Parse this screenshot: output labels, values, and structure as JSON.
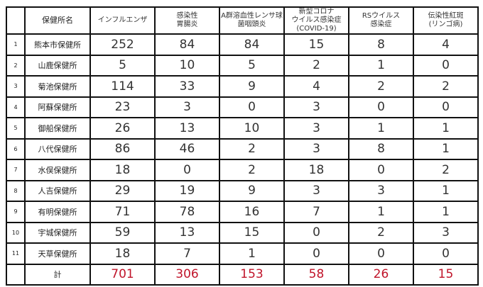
{
  "headers": {
    "no": "",
    "name": "保健所名",
    "cols": [
      [
        "インフルエンザ"
      ],
      [
        "感染性",
        "胃腸炎"
      ],
      [
        "A群溶血性レンサ球",
        "菌咽頭炎"
      ],
      [
        "新型コロナ",
        "ウイルス感染症",
        "(COVID-19)"
      ],
      [
        "RSウイルス",
        "感染症"
      ],
      [
        "伝染性紅斑",
        "(リンゴ病)"
      ]
    ]
  },
  "rows": [
    {
      "no": "1",
      "name": "熊本市保健所",
      "values": [
        "252",
        "84",
        "84",
        "15",
        "8",
        "4"
      ]
    },
    {
      "no": "2",
      "name": "山鹿保健所",
      "values": [
        "5",
        "10",
        "5",
        "2",
        "1",
        "0"
      ]
    },
    {
      "no": "3",
      "name": "菊池保健所",
      "values": [
        "114",
        "33",
        "9",
        "4",
        "2",
        "2"
      ]
    },
    {
      "no": "4",
      "name": "阿蘇保健所",
      "values": [
        "23",
        "3",
        "0",
        "3",
        "0",
        "0"
      ]
    },
    {
      "no": "5",
      "name": "御船保健所",
      "values": [
        "26",
        "13",
        "10",
        "3",
        "1",
        "1"
      ]
    },
    {
      "no": "6",
      "name": "八代保健所",
      "values": [
        "86",
        "46",
        "2",
        "3",
        "8",
        "1"
      ]
    },
    {
      "no": "7",
      "name": "水俣保健所",
      "values": [
        "18",
        "0",
        "2",
        "18",
        "0",
        "2"
      ]
    },
    {
      "no": "8",
      "name": "人吉保健所",
      "values": [
        "29",
        "19",
        "9",
        "3",
        "3",
        "1"
      ]
    },
    {
      "no": "9",
      "name": "有明保健所",
      "values": [
        "71",
        "78",
        "16",
        "7",
        "1",
        "1"
      ]
    },
    {
      "no": "10",
      "name": "宇城保健所",
      "values": [
        "59",
        "13",
        "15",
        "0",
        "2",
        "3"
      ]
    },
    {
      "no": "11",
      "name": "天草保健所",
      "values": [
        "18",
        "7",
        "1",
        "0",
        "0",
        "0"
      ]
    }
  ],
  "total": {
    "label": "計",
    "values": [
      "701",
      "306",
      "153",
      "58",
      "26",
      "15"
    ]
  },
  "colors": {
    "total_text": "#c0142a",
    "border": "#111111"
  }
}
